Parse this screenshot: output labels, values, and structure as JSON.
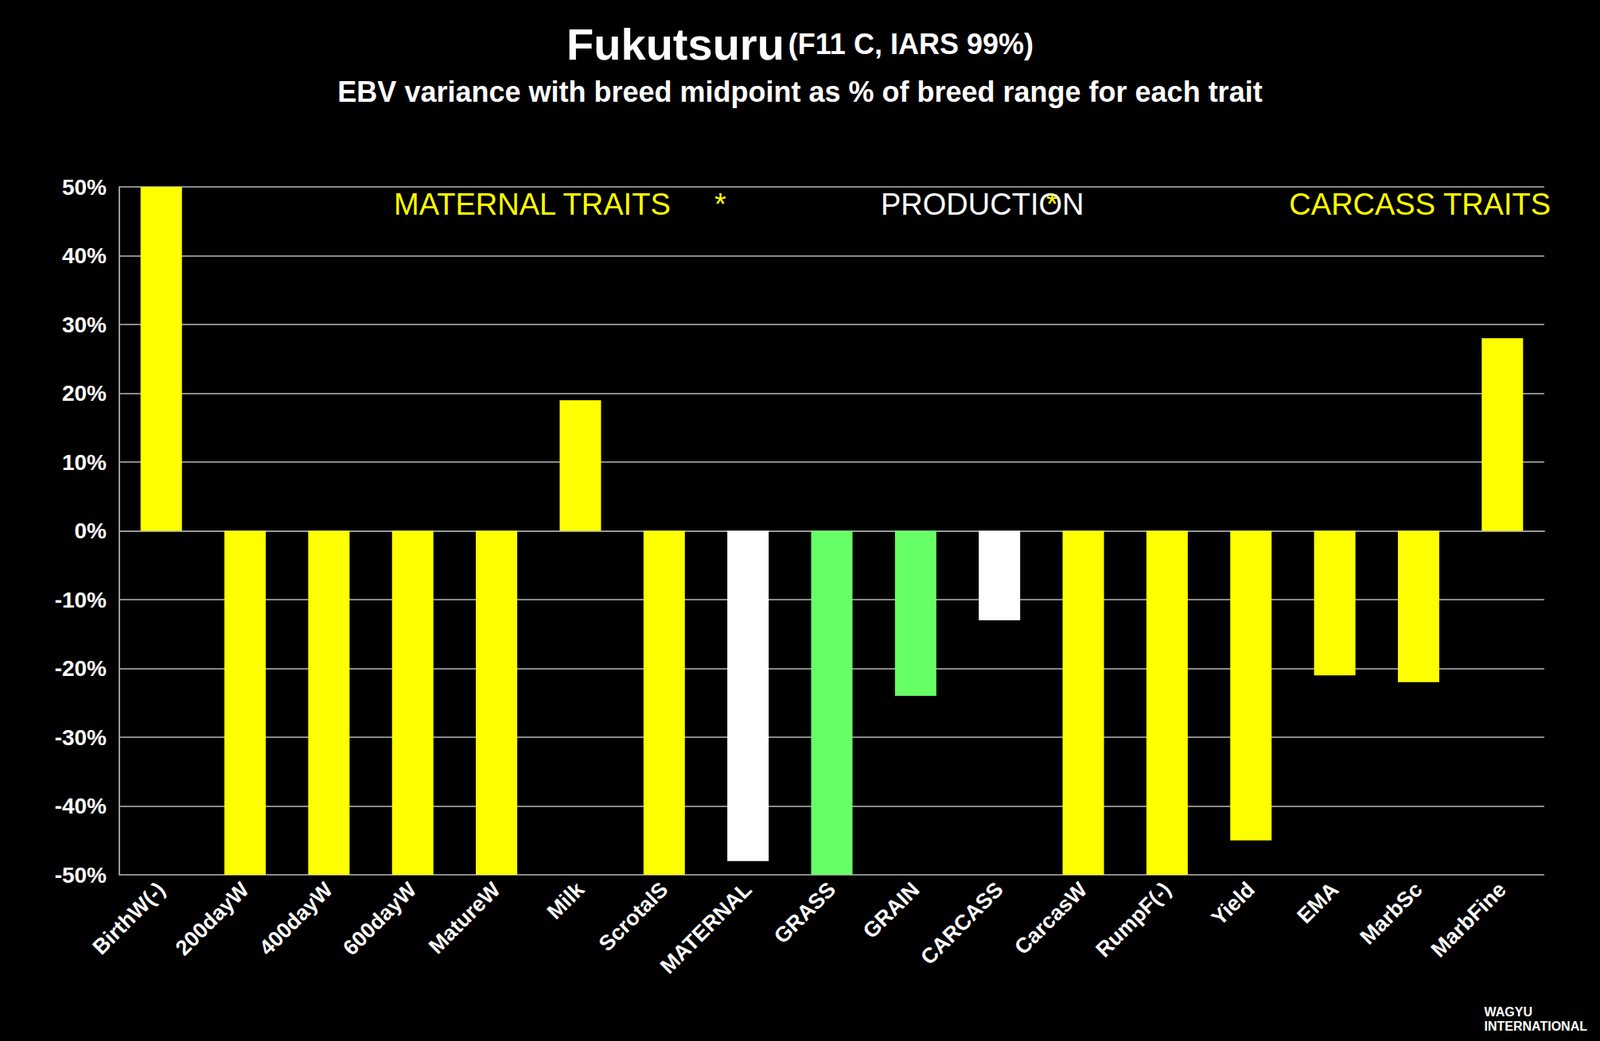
{
  "chart_data": {
    "type": "bar",
    "title": "Fukutsuru",
    "title_note": "(F11 C, IARS 99%)",
    "subtitle": "EBV variance with breed midpoint as % of breed range for each trait",
    "annotations": [
      {
        "text": "MATERNAL TRAITS",
        "color": "#ffff00"
      },
      {
        "text": "*",
        "color": "#ffff00"
      },
      {
        "text": "PRODUCTION",
        "color": "#ffffff"
      },
      {
        "text": "*",
        "color": "#ffff00"
      },
      {
        "text": "CARCASS TRAITS",
        "color": "#ffff00"
      }
    ],
    "logo": [
      "WAGYU",
      "INTERNATIONAL"
    ],
    "categories": [
      "BirthW(-)",
      "200dayW",
      "400dayW",
      "600dayW",
      "MatureW",
      "Milk",
      "ScrotalS",
      "MATERNAL",
      "GRASS",
      "GRAIN",
      "CARCASS",
      "CarcasW",
      "RumpF(-)",
      "Yield",
      "EMA",
      "MarbSc",
      "MarbFine"
    ],
    "values": [
      50,
      -50,
      -50,
      -50,
      -50,
      19,
      -50,
      -48,
      -50,
      -24,
      -13,
      -50,
      -50,
      -45,
      -21,
      -22,
      28
    ],
    "colors": [
      "#ffff00",
      "#ffff00",
      "#ffff00",
      "#ffff00",
      "#ffff00",
      "#ffff00",
      "#ffff00",
      "#ffffff",
      "#66ff66",
      "#66ff66",
      "#ffffff",
      "#ffff00",
      "#ffff00",
      "#ffff00",
      "#ffff00",
      "#ffff00",
      "#ffff00"
    ],
    "ylim": [
      -50,
      50
    ],
    "yticks": [
      {
        "value": -50,
        "label": "-50%"
      },
      {
        "value": -40,
        "label": "-40%"
      },
      {
        "value": -30,
        "label": "-30%"
      },
      {
        "value": -20,
        "label": "-20%"
      },
      {
        "value": -10,
        "label": "-10%"
      },
      {
        "value": 0,
        "label": "0%"
      },
      {
        "value": 10,
        "label": "10%"
      },
      {
        "value": 20,
        "label": "20%"
      },
      {
        "value": 30,
        "label": "30%"
      },
      {
        "value": 40,
        "label": "40%"
      },
      {
        "value": 50,
        "label": "50%"
      }
    ],
    "grid": true,
    "data_labels": false
  }
}
